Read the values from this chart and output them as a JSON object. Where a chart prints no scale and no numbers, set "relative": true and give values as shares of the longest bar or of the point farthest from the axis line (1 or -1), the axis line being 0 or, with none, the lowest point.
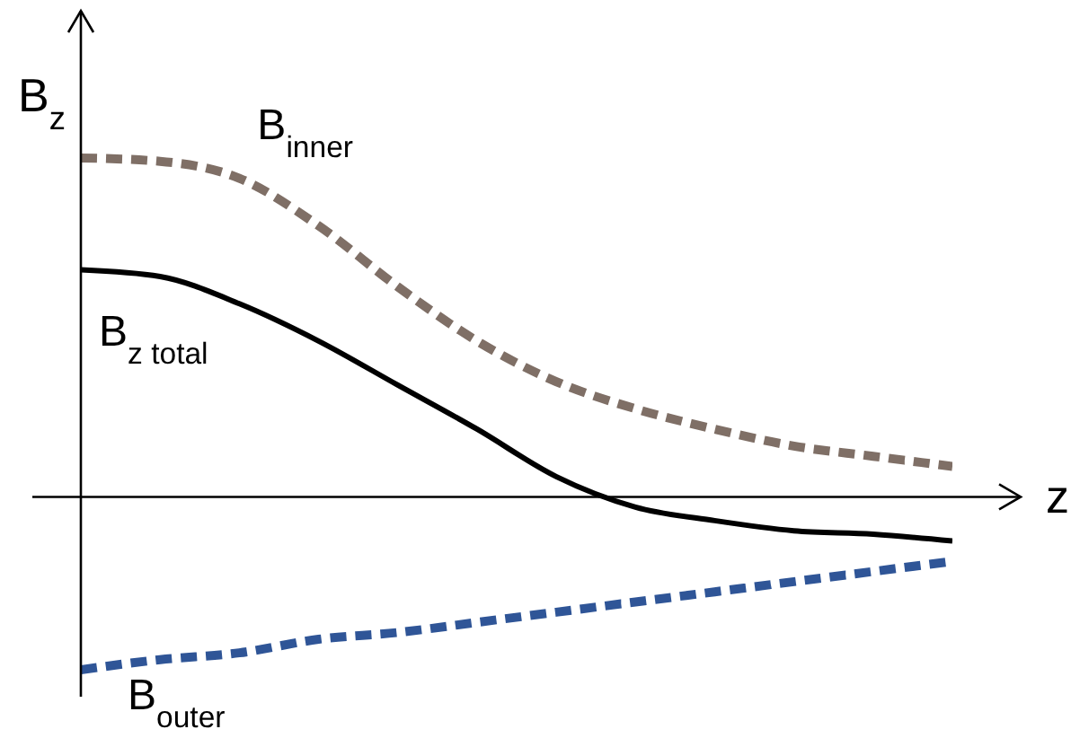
{
  "chart_data": {
    "type": "line",
    "relative": true,
    "xlabel": "z",
    "ylabel": "B$_{z}$",
    "categories": [
      null,
      null,
      null,
      null,
      null,
      null,
      null,
      null,
      null,
      null,
      null,
      null
    ],
    "marker": "none",
    "series": [
      {
        "name": "B$_{inner}$",
        "color": "#7f6f66",
        "line_style": "dashed",
        "values": [
          1,
          0.99,
          0.94,
          0.8,
          0.62,
          0.46,
          0.34,
          0.26,
          0.2,
          0.15,
          0.12,
          0.09
        ]
      },
      {
        "name": "B$_{z total}$",
        "color": "#000000",
        "line_style": "solid",
        "values": [
          0.67,
          0.65,
          0.57,
          0.46,
          0.33,
          0.2,
          0.06,
          -0.03,
          -0.07,
          -0.1,
          -0.11,
          -0.13
        ]
      },
      {
        "name": "B$_{outer}$",
        "color": "#2f5597",
        "line_style": "dashed",
        "values": [
          -0.51,
          -0.48,
          -0.46,
          -0.42,
          -0.4,
          -0.37,
          -0.34,
          -0.31,
          -0.28,
          -0.25,
          -0.22,
          -0.19
        ]
      }
    ]
  }
}
